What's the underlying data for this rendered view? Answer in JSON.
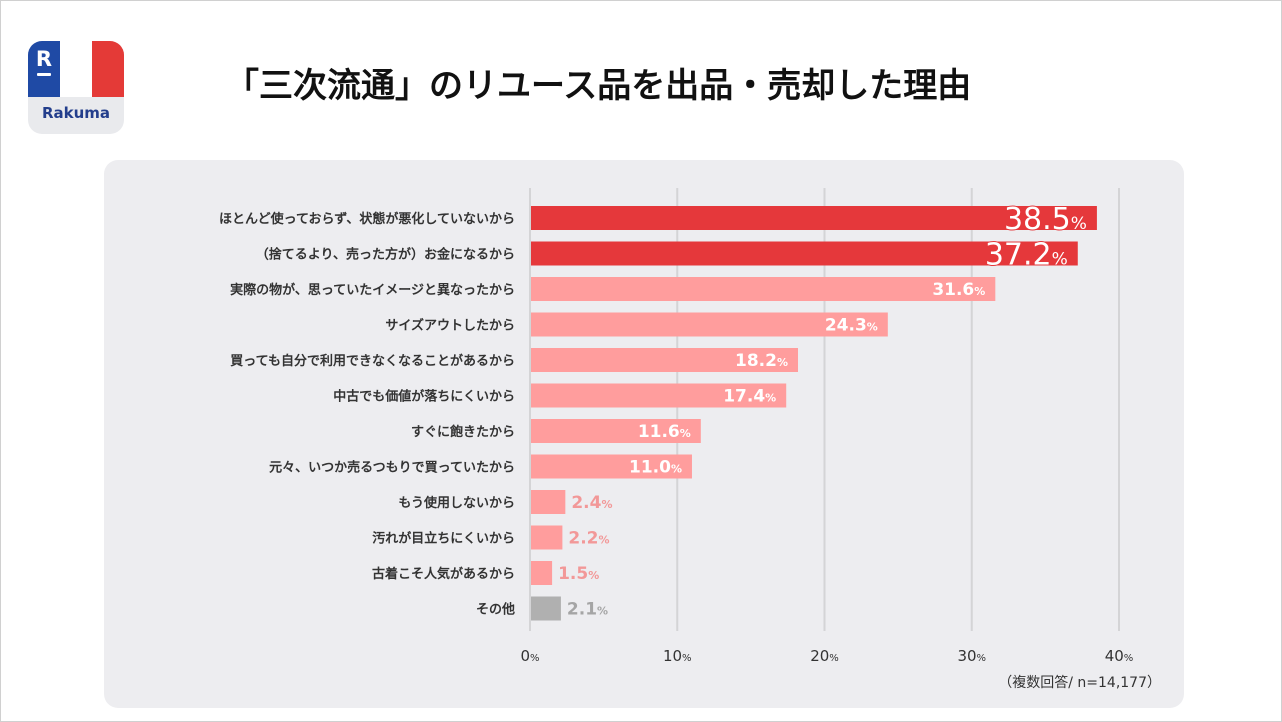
{
  "logo": {
    "mark": "R",
    "brand": "Rakuma",
    "colors": {
      "blue": "#1f4aa5",
      "white": "#ffffff",
      "red": "#e43a37",
      "text": "#233e8c"
    }
  },
  "header": {
    "title": "「三次流通」のリユース品を出品・売却した理由"
  },
  "footer": {
    "note": "（複数回答/ n=14,177）"
  },
  "chart_data": {
    "type": "bar",
    "orientation": "horizontal",
    "title": "「三次流通」のリユース品を出品・売却した理由",
    "categories": [
      "ほとんど使っておらず、状態が悪化していないから",
      "（捨てるより、売った方が）お金になるから",
      "実際の物が、思っていたイメージと異なったから",
      "サイズアウトしたから",
      "買っても自分で利用できなくなることがあるから",
      "中古でも価値が落ちにくいから",
      "すぐに飽きたから",
      "元々、いつか売るつもりで買っていたから",
      "もう使用しないから",
      "汚れが目立ちにくいから",
      "古着こそ人気があるから",
      "その他"
    ],
    "values": [
      38.5,
      37.2,
      31.6,
      24.3,
      18.2,
      17.4,
      11.6,
      11.0,
      2.4,
      2.2,
      1.5,
      2.1
    ],
    "value_labels": [
      "38.5",
      "37.2",
      "31.6",
      "24.3",
      "18.2",
      "17.4",
      "11.6",
      "11.0",
      "2.4",
      "2.2",
      "1.5",
      "2.1"
    ],
    "unit": "%",
    "xlim": [
      0,
      40
    ],
    "ticks": [
      0,
      10,
      20,
      30,
      40
    ],
    "tick_labels": [
      "0",
      "10",
      "20",
      "30",
      "40"
    ],
    "grid": true,
    "colors": {
      "top": "#e5383b",
      "mid": "#ff9d9d",
      "small_text": "#f29898",
      "other": "#b0b0b0",
      "other_text": "#a5a5a5",
      "grid": "#d4d4d6",
      "category_text": "#333333",
      "tick_text": "#333333"
    }
  }
}
